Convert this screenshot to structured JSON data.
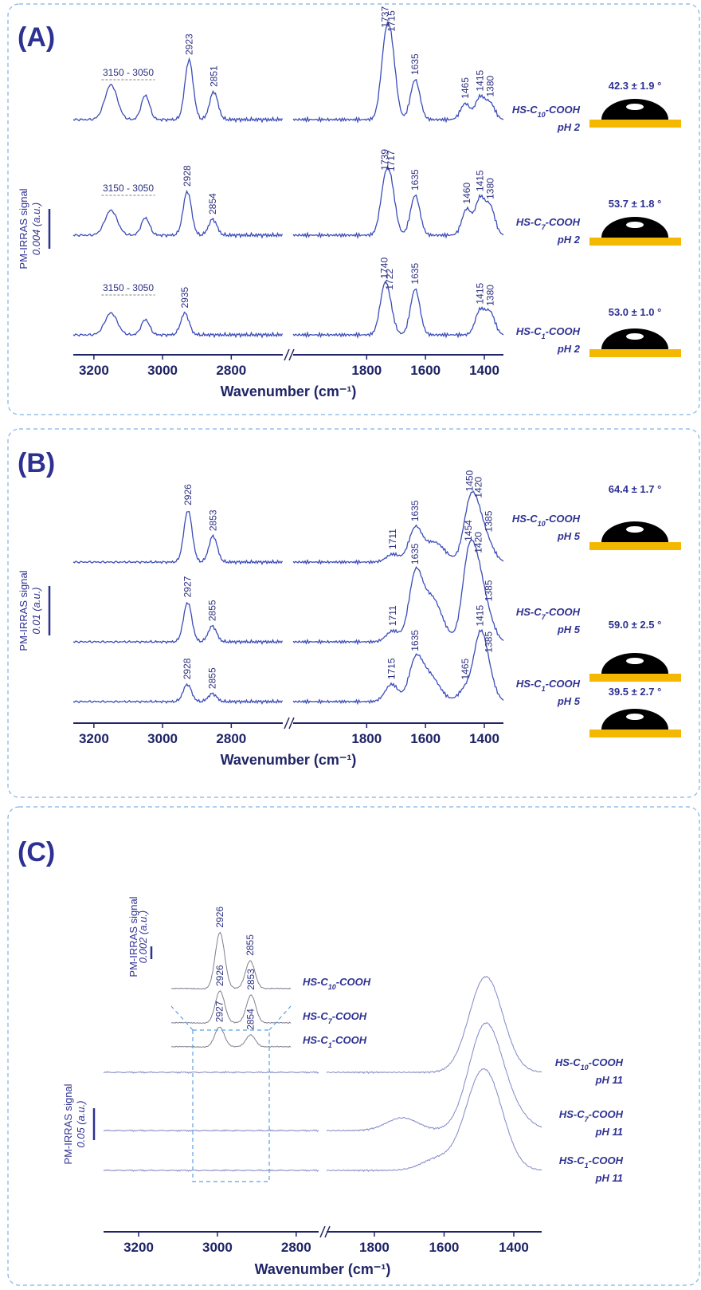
{
  "panels": [
    {
      "label": "(A)",
      "y_axis_label": "PM-IRRAS signal",
      "scale_bar": {
        "value": 0.004,
        "label": "0.004 (a.u.)"
      },
      "x_axis_label": "Wavenumber (cm⁻¹)",
      "xlim_left": [
        3260,
        2650
      ],
      "xlim_right": [
        2050,
        1335
      ],
      "xticks_left": [
        3200,
        3000,
        2800
      ],
      "xticks_right": [
        1800,
        1600,
        1400
      ],
      "spectra": [
        {
          "sample": [
            "HS-C",
            "10",
            "-COOH"
          ],
          "condition": "pH 2",
          "contact_angle": "42.3 ± 1.9 °",
          "band": {
            "from": 3150,
            "to": 3050,
            "label": "3150 - 3050",
            "height": 0.0035
          },
          "peaks": [
            2923,
            2851,
            1737,
            1715,
            1635,
            1465,
            1415,
            1380
          ],
          "peak_heights": [
            0.006,
            0.0028,
            0.0065,
            0.0058,
            0.004,
            0.0016,
            0.0022,
            0.0016
          ]
        },
        {
          "sample": [
            "HS-C",
            "7",
            "-COOH"
          ],
          "condition": "pH 2",
          "contact_angle": "53.7 ± 1.8 °",
          "band": {
            "from": 3150,
            "to": 3050,
            "label": "3150 - 3050",
            "height": 0.0025
          },
          "peaks": [
            2928,
            2854,
            1739,
            1717,
            1635,
            1460,
            1415,
            1380
          ],
          "peak_heights": [
            0.0044,
            0.0016,
            0.0044,
            0.0042,
            0.004,
            0.0026,
            0.0036,
            0.0028
          ]
        },
        {
          "sample": [
            "HS-C",
            "1",
            "-COOH"
          ],
          "condition": "pH 2",
          "contact_angle": "53.0 ± 1.0 °",
          "band": {
            "from": 3150,
            "to": 3050,
            "label": "3150 - 3050",
            "height": 0.0022
          },
          "peaks": [
            2935,
            1740,
            1722,
            1635,
            1415,
            1380
          ],
          "peak_heights": [
            0.0022,
            0.0042,
            0.0018,
            0.0046,
            0.0024,
            0.0022
          ]
        }
      ]
    },
    {
      "label": "(B)",
      "y_axis_label": "PM-IRRAS signal",
      "scale_bar": {
        "value": 0.01,
        "label": "0.01 (a.u.)"
      },
      "x_axis_label": "Wavenumber (cm⁻¹)",
      "xlim_left": [
        3260,
        2650
      ],
      "xlim_right": [
        2050,
        1335
      ],
      "xticks_left": [
        3200,
        3000,
        2800
      ],
      "xticks_right": [
        1800,
        1600,
        1400
      ],
      "spectra": [
        {
          "sample": [
            "HS-C",
            "10",
            "-COOH"
          ],
          "condition": "pH 5",
          "contact_angle": "64.4 ± 1.7 °",
          "peaks": [
            2926,
            2853,
            1711,
            1635,
            1450,
            1420,
            1385
          ],
          "peak_heights": [
            0.0105,
            0.0053,
            0.0016,
            0.0065,
            0.0105,
            0.007,
            0.003
          ],
          "features": [
            {
              "x": 1570,
              "height": 0.004
            }
          ]
        },
        {
          "sample": [
            "HS-C",
            "7",
            "-COOH"
          ],
          "condition": "pH 5",
          "contact_angle": "59.0 ± 2.5 °",
          "peaks": [
            2927,
            2855,
            1711,
            1635,
            1454,
            1420,
            1385
          ],
          "peak_heights": [
            0.008,
            0.0032,
            0.0022,
            0.012,
            0.016,
            0.011,
            0.004
          ],
          "features": [
            {
              "x": 1580,
              "height": 0.009
            }
          ]
        },
        {
          "sample": [
            "HS-C",
            "1",
            "-COOH"
          ],
          "condition": "pH 5",
          "contact_angle": "39.5 ± 2.7 °",
          "peaks": [
            2928,
            2855,
            1715,
            1635,
            1465,
            1415,
            1385
          ],
          "peak_heights": [
            0.0035,
            0.0016,
            0.0035,
            0.0068,
            0.0025,
            0.0125,
            0.004
          ],
          "features": [
            {
              "x": 1590,
              "height": 0.0055
            }
          ]
        }
      ]
    },
    {
      "label": "(C)",
      "y_axis_label": "PM-IRRAS signal",
      "scale_bar": {
        "value": 0.05,
        "label": "0.05 (a.u.)"
      },
      "x_axis_label": "Wavenumber (cm⁻¹)",
      "xlim_left": [
        3289,
        2743
      ],
      "xlim_right": [
        1937,
        1320
      ],
      "xticks_left": [
        3200,
        3000,
        2800
      ],
      "xticks_right": [
        1800,
        1600,
        1400
      ],
      "spectra": [
        {
          "sample": [
            "HS-C",
            "10",
            "-COOH"
          ],
          "condition": "pH 11",
          "features": [
            {
              "x": 1490,
              "height": 0.11
            },
            {
              "x": 1455,
              "height": 0.05
            }
          ]
        },
        {
          "sample": [
            "HS-C",
            "7",
            "-COOH"
          ],
          "condition": "pH 11",
          "features": [
            {
              "x": 1490,
              "height": 0.13
            },
            {
              "x": 1450,
              "height": 0.05
            },
            {
              "x": 1720,
              "height": 0.02
            },
            {
              "x": 1390,
              "height": 0.015
            }
          ]
        },
        {
          "sample": [
            "HS-C",
            "1",
            "-COOH"
          ],
          "condition": "pH 11",
          "features": [
            {
              "x": 1505,
              "height": 0.1
            },
            {
              "x": 1460,
              "height": 0.08
            },
            {
              "x": 1620,
              "height": 0.018
            }
          ]
        }
      ],
      "inset": {
        "y_axis_label": "PM-IRRAS signal",
        "scale_bar": {
          "value": 0.002,
          "label": "0.002 (a.u.)"
        },
        "xlim": [
          3040,
          2760
        ],
        "spectra": [
          {
            "sample": [
              "HS-C",
              "10",
              "-COOH"
            ],
            "peaks": [
              2926,
              2855
            ],
            "peak_heights": [
              0.0088,
              0.0044
            ]
          },
          {
            "sample": [
              "HS-C",
              "7",
              "-COOH"
            ],
            "peaks": [
              2926,
              2853
            ],
            "peak_heights": [
              0.005,
              0.0044
            ]
          },
          {
            "sample": [
              "HS-C",
              "1",
              "-COOH"
            ],
            "peaks": [
              2927,
              2854
            ],
            "peak_heights": [
              0.0031,
              0.0019
            ]
          }
        ]
      }
    }
  ]
}
